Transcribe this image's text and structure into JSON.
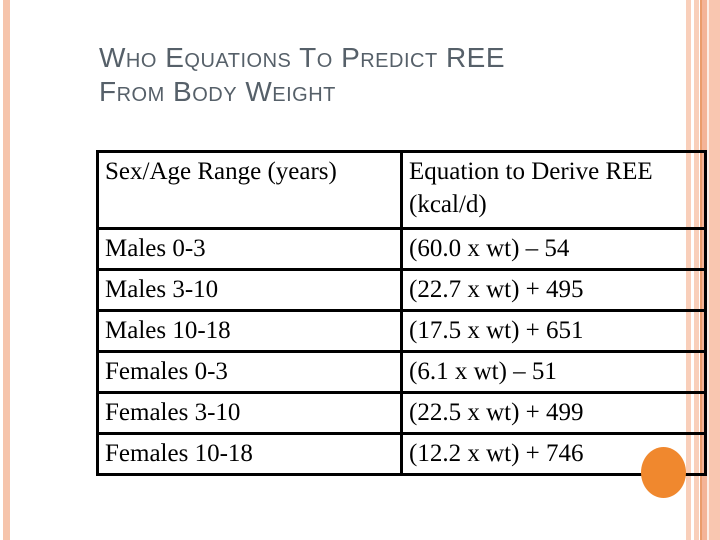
{
  "slide": {
    "title": "Who Equations To Predict REE From Body Weight",
    "title_lines": [
      "Who Equations To Predict REE",
      "From Body Weight"
    ],
    "title_color": "#566069"
  },
  "theme": {
    "side_stripe_color": "#f6c4ab",
    "right_band_color": "#f9c6b0",
    "accent_line_color": "#eb9c6b",
    "circle_color": "#f0882e",
    "table_border_color": "#000000"
  },
  "table": {
    "headers": [
      "Sex/Age Range (years)",
      "Equation to Derive REE (kcal/d)"
    ],
    "rows": [
      {
        "sex_age": "Males 0-3",
        "equation": "(60.0 x wt) – 54"
      },
      {
        "sex_age": "Males 3-10",
        "equation": "(22.7 x wt) + 495"
      },
      {
        "sex_age": "Males 10-18",
        "equation": "(17.5 x wt) + 651"
      },
      {
        "sex_age": "Females 0-3",
        "equation": "(6.1 x wt) – 51"
      },
      {
        "sex_age": "Females 3-10",
        "equation": "(22.5 x wt) + 499"
      },
      {
        "sex_age": "Females 10-18",
        "equation": "(12.2 x wt) + 746"
      }
    ]
  }
}
